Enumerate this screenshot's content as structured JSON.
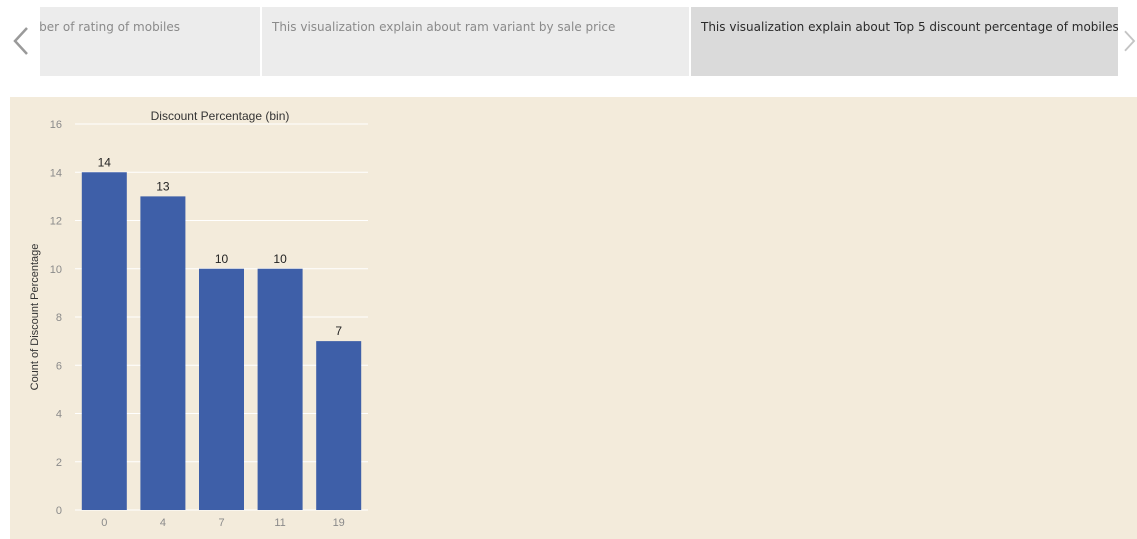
{
  "story": {
    "tabs": [
      {
        "label": "Number of rating of mobiles"
      },
      {
        "label": "This visualization explain about ram variant by sale price"
      },
      {
        "label": "This visualization explain about Top 5 discount percentage of mobiles",
        "active": true
      }
    ]
  },
  "icons": {
    "prev": "chevron-left-icon",
    "next": "chevron-right-icon"
  },
  "colors": {
    "bar": "#3e5fa8",
    "panel_bg": "#f3ebdb",
    "tab_bg": "#ececec",
    "tab_active_bg": "#dadada"
  },
  "chart_data": {
    "type": "bar",
    "title": "Discount Percentage (bin)",
    "xlabel": "",
    "ylabel": "Count of Discount Percentage",
    "categories": [
      "0",
      "4",
      "7",
      "11",
      "19"
    ],
    "values": [
      14,
      13,
      10,
      10,
      7
    ],
    "ylim": [
      0,
      16
    ],
    "yticks": [
      0,
      2,
      4,
      6,
      8,
      10,
      12,
      14,
      16
    ],
    "grid": true,
    "legend": "none"
  }
}
